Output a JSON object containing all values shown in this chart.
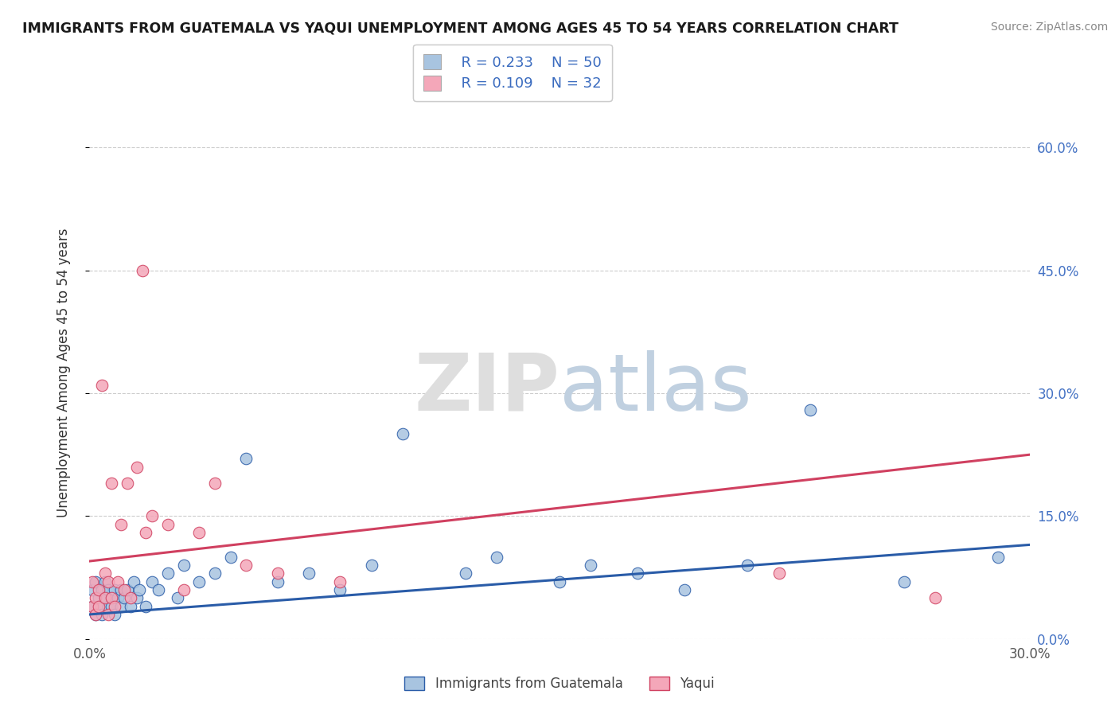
{
  "title": "IMMIGRANTS FROM GUATEMALA VS YAQUI UNEMPLOYMENT AMONG AGES 45 TO 54 YEARS CORRELATION CHART",
  "source": "Source: ZipAtlas.com",
  "ylabel": "Unemployment Among Ages 45 to 54 years",
  "xlim": [
    0.0,
    0.3
  ],
  "ylim": [
    0.0,
    0.65
  ],
  "x_ticks": [
    0.0,
    0.05,
    0.1,
    0.15,
    0.2,
    0.25,
    0.3
  ],
  "x_tick_labels": [
    "0.0%",
    "",
    "",
    "",
    "",
    "",
    "30.0%"
  ],
  "y_ticks": [
    0.0,
    0.15,
    0.3,
    0.45,
    0.6
  ],
  "y_tick_labels_right": [
    "0.0%",
    "15.0%",
    "30.0%",
    "45.0%",
    "60.0%"
  ],
  "legend1_label": "Immigrants from Guatemala",
  "legend2_label": "Yaqui",
  "r1": 0.233,
  "n1": 50,
  "r2": 0.109,
  "n2": 32,
  "color1": "#a8c4e0",
  "color2": "#f4a7b9",
  "line_color1": "#2a5ca8",
  "line_color2": "#d04060",
  "blue_scatter_x": [
    0.001,
    0.001,
    0.002,
    0.002,
    0.003,
    0.003,
    0.004,
    0.004,
    0.005,
    0.005,
    0.006,
    0.006,
    0.007,
    0.007,
    0.008,
    0.008,
    0.009,
    0.01,
    0.01,
    0.011,
    0.012,
    0.013,
    0.014,
    0.015,
    0.016,
    0.018,
    0.02,
    0.022,
    0.025,
    0.028,
    0.03,
    0.035,
    0.04,
    0.045,
    0.05,
    0.06,
    0.07,
    0.08,
    0.09,
    0.1,
    0.12,
    0.13,
    0.15,
    0.16,
    0.175,
    0.19,
    0.21,
    0.23,
    0.26,
    0.29
  ],
  "blue_scatter_y": [
    0.04,
    0.06,
    0.03,
    0.07,
    0.05,
    0.04,
    0.06,
    0.03,
    0.05,
    0.07,
    0.04,
    0.06,
    0.05,
    0.04,
    0.06,
    0.03,
    0.05,
    0.06,
    0.04,
    0.05,
    0.06,
    0.04,
    0.07,
    0.05,
    0.06,
    0.04,
    0.07,
    0.06,
    0.08,
    0.05,
    0.09,
    0.07,
    0.08,
    0.1,
    0.22,
    0.07,
    0.08,
    0.06,
    0.09,
    0.25,
    0.08,
    0.1,
    0.07,
    0.09,
    0.08,
    0.06,
    0.09,
    0.28,
    0.07,
    0.1
  ],
  "pink_scatter_x": [
    0.001,
    0.001,
    0.002,
    0.002,
    0.003,
    0.003,
    0.004,
    0.005,
    0.005,
    0.006,
    0.006,
    0.007,
    0.007,
    0.008,
    0.009,
    0.01,
    0.011,
    0.012,
    0.013,
    0.015,
    0.017,
    0.018,
    0.02,
    0.025,
    0.03,
    0.035,
    0.04,
    0.05,
    0.06,
    0.08,
    0.22,
    0.27
  ],
  "pink_scatter_y": [
    0.04,
    0.07,
    0.05,
    0.03,
    0.06,
    0.04,
    0.31,
    0.05,
    0.08,
    0.03,
    0.07,
    0.19,
    0.05,
    0.04,
    0.07,
    0.14,
    0.06,
    0.19,
    0.05,
    0.21,
    0.45,
    0.13,
    0.15,
    0.14,
    0.06,
    0.13,
    0.19,
    0.09,
    0.08,
    0.07,
    0.08,
    0.05
  ],
  "blue_line_x": [
    0.0,
    0.3
  ],
  "blue_line_y": [
    0.03,
    0.115
  ],
  "pink_line_x": [
    0.0,
    0.3
  ],
  "pink_line_y": [
    0.095,
    0.225
  ]
}
